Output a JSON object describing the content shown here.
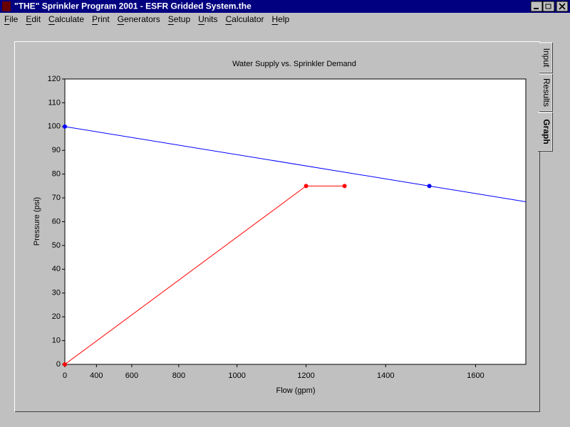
{
  "window": {
    "title": "\"THE\" Sprinkler Program 2001 - ESFR Gridded System.the"
  },
  "menu": [
    "File",
    "Edit",
    "Calculate",
    "Print",
    "Generators",
    "Setup",
    "Units",
    "Calculator",
    "Help"
  ],
  "tabs": [
    "Input",
    "Results",
    "Graph"
  ],
  "chart_data": {
    "type": "line",
    "title": "Water Supply vs. Sprinkler Demand",
    "x_label": "Flow (gpm)",
    "y_label": "Pressure (psi)",
    "x_scale": "power",
    "x_exponent": 1.85,
    "xlim": [
      0,
      1703
    ],
    "xticks": [
      0,
      400,
      600,
      800,
      1000,
      1200,
      1400,
      1600
    ],
    "ylim": [
      0,
      120
    ],
    "yticks": [
      0,
      10,
      20,
      30,
      40,
      50,
      60,
      70,
      80,
      90,
      100,
      110,
      120
    ],
    "series": [
      {
        "name": "Water Supply",
        "color": "#0000ff",
        "extend": true,
        "x": [
          0,
          1500
        ],
        "values": [
          100,
          75
        ]
      },
      {
        "name": "Sprinkler Demand",
        "color": "#ff0000",
        "extend": false,
        "x": [
          0,
          1200,
          1300
        ],
        "values": [
          0,
          75,
          75
        ]
      }
    ]
  }
}
